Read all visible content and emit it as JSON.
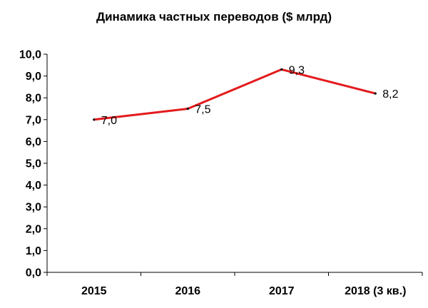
{
  "chart_data": {
    "type": "line",
    "title": "Динамика частных переводов ($ млрд)",
    "categories": [
      "2015",
      "2016",
      "2017",
      "2018 (3 кв.)"
    ],
    "series": [
      {
        "values": [
          7.0,
          7.5,
          9.3,
          8.2
        ],
        "data_labels": [
          "7,0",
          "7,5",
          "9,3",
          "8,2"
        ],
        "color": "#e31a1c"
      }
    ],
    "ylim": [
      0,
      10
    ],
    "yticks": [
      "0,0",
      "1,0",
      "2,0",
      "3,0",
      "4,0",
      "5,0",
      "6,0",
      "7,0",
      "8,0",
      "9,0",
      "10,0"
    ],
    "xlabel": "",
    "ylabel": "",
    "grid": false,
    "legend": "none"
  }
}
